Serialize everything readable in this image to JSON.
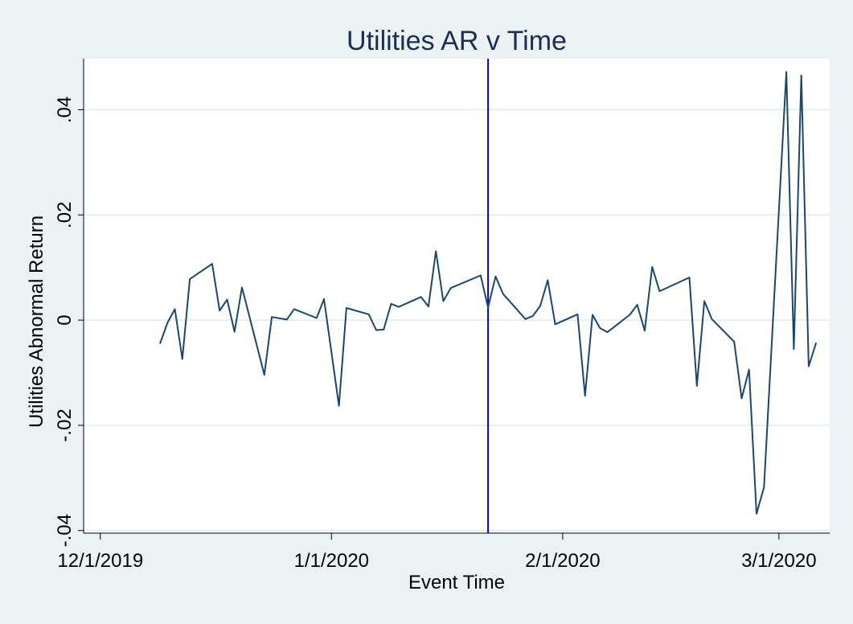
{
  "chart_data": {
    "type": "line",
    "title": "Utilities AR v Time",
    "xlabel": "Event Time",
    "ylabel": "Utilities Abnormal Return",
    "x_ticks": [
      {
        "label": "12/1/2019",
        "date": "2019-12-01"
      },
      {
        "label": "1/1/2020",
        "date": "2020-01-01"
      },
      {
        "label": "2/1/2020",
        "date": "2020-02-01"
      },
      {
        "label": "3/1/2020",
        "date": "2020-03-01"
      }
    ],
    "y_ticks": [
      {
        "label": "-.04",
        "value": -0.04
      },
      {
        "label": "-.02",
        "value": -0.02
      },
      {
        "label": "0",
        "value": 0
      },
      {
        "label": ".02",
        "value": 0.02
      },
      {
        "label": ".04",
        "value": 0.04
      }
    ],
    "xlim": [
      "2019-12-01",
      "2020-03-06"
    ],
    "ylim": [
      -0.0405,
      0.0497
    ],
    "grid": true,
    "event_line": {
      "date": "2020-01-22",
      "color": "#0000cc"
    },
    "series": [
      {
        "color": "#1a476f",
        "points": [
          [
            "2019-12-09",
            -0.0045
          ],
          [
            "2019-12-10",
            -0.0005
          ],
          [
            "2019-12-11",
            0.0021
          ],
          [
            "2019-12-12",
            -0.0074
          ],
          [
            "2019-12-13",
            0.0078
          ],
          [
            "2019-12-16",
            0.0107
          ],
          [
            "2019-12-17",
            0.0018
          ],
          [
            "2019-12-18",
            0.0039
          ],
          [
            "2019-12-19",
            -0.0022
          ],
          [
            "2019-12-20",
            0.0062
          ],
          [
            "2019-12-23",
            -0.0104
          ],
          [
            "2019-12-24",
            0.0006
          ],
          [
            "2019-12-26",
            0.0001
          ],
          [
            "2019-12-27",
            0.0021
          ],
          [
            "2019-12-30",
            0.0004
          ],
          [
            "2019-12-31",
            0.004
          ],
          [
            "2020-01-02",
            -0.0163
          ],
          [
            "2020-01-03",
            0.0023
          ],
          [
            "2020-01-06",
            0.0011
          ],
          [
            "2020-01-07",
            -0.0019
          ],
          [
            "2020-01-08",
            -0.0018
          ],
          [
            "2020-01-09",
            0.0031
          ],
          [
            "2020-01-10",
            0.0025
          ],
          [
            "2020-01-13",
            0.0044
          ],
          [
            "2020-01-14",
            0.0026
          ],
          [
            "2020-01-15",
            0.0131
          ],
          [
            "2020-01-16",
            0.0036
          ],
          [
            "2020-01-17",
            0.0061
          ],
          [
            "2020-01-21",
            0.0085
          ],
          [
            "2020-01-22",
            0.0024
          ],
          [
            "2020-01-23",
            0.0083
          ],
          [
            "2020-01-24",
            0.005
          ],
          [
            "2020-01-27",
            0.0002
          ],
          [
            "2020-01-28",
            0.0008
          ],
          [
            "2020-01-29",
            0.0027
          ],
          [
            "2020-01-30",
            0.0076
          ],
          [
            "2020-01-31",
            -0.0008
          ],
          [
            "2020-02-03",
            0.0011
          ],
          [
            "2020-02-04",
            -0.0144
          ],
          [
            "2020-02-05",
            0.001
          ],
          [
            "2020-02-06",
            -0.0015
          ],
          [
            "2020-02-07",
            -0.0023
          ],
          [
            "2020-02-10",
            0.001
          ],
          [
            "2020-02-11",
            0.0029
          ],
          [
            "2020-02-12",
            -0.002
          ],
          [
            "2020-02-13",
            0.0101
          ],
          [
            "2020-02-14",
            0.0055
          ],
          [
            "2020-02-18",
            0.0081
          ],
          [
            "2020-02-19",
            -0.0125
          ],
          [
            "2020-02-20",
            0.0036
          ],
          [
            "2020-02-21",
            0.0002
          ],
          [
            "2020-02-24",
            -0.0041
          ],
          [
            "2020-02-25",
            -0.0149
          ],
          [
            "2020-02-26",
            -0.0094
          ],
          [
            "2020-02-27",
            -0.0368
          ],
          [
            "2020-02-28",
            -0.0318
          ],
          [
            "2020-03-02",
            0.0472
          ],
          [
            "2020-03-03",
            -0.0055
          ],
          [
            "2020-03-04",
            0.0465
          ],
          [
            "2020-03-05",
            -0.0088
          ],
          [
            "2020-03-06",
            -0.0043
          ]
        ]
      }
    ]
  }
}
